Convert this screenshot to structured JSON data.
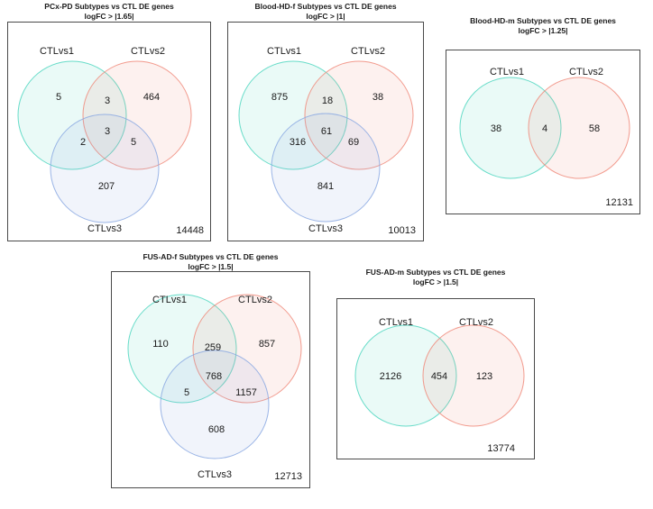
{
  "colors": {
    "set1": "#4fd6bf",
    "set2": "#f08a7a",
    "set3": "#8aa8e2",
    "frame": "#4a4a4a"
  },
  "panels": [
    {
      "title": "PCx-PD Subtypes vs CTL DE genes",
      "subtitle": "logFC > |1.65|",
      "set_labels": [
        "CTLvs1",
        "CTLvs2",
        "CTLvs3"
      ],
      "regions": {
        "only1": "5",
        "only2": "464",
        "only3": "207",
        "s12": "3",
        "s13": "2",
        "s23": "5",
        "s123": "3"
      },
      "outside": "14448"
    },
    {
      "title": "Blood-HD-f Subtypes vs CTL DE genes",
      "subtitle": "logFC > |1|",
      "set_labels": [
        "CTLvs1",
        "CTLvs2",
        "CTLvs3"
      ],
      "regions": {
        "only1": "875",
        "only2": "38",
        "only3": "841",
        "s12": "18",
        "s13": "316",
        "s23": "69",
        "s123": "61"
      },
      "outside": "10013"
    },
    {
      "title": "Blood-HD-m Subtypes vs CTL DE genes",
      "subtitle": "logFC > |1.25|",
      "set_labels": [
        "CTLvs1",
        "CTLvs2"
      ],
      "regions": {
        "only1": "38",
        "only2": "58",
        "s12": "4"
      },
      "outside": "12131"
    },
    {
      "title": "FUS-AD-f Subtypes vs CTL DE genes",
      "subtitle": "logFC > |1.5|",
      "set_labels": [
        "CTLvs1",
        "CTLvs2",
        "CTLvs3"
      ],
      "regions": {
        "only1": "110",
        "only2": "857",
        "only3": "608",
        "s12": "259",
        "s13": "5",
        "s23": "1157",
        "s123": "768"
      },
      "outside": "12713"
    },
    {
      "title": "FUS-AD-m Subtypes vs CTL DE genes",
      "subtitle": "logFC > |1.5|",
      "set_labels": [
        "CTLvs1",
        "CTLvs2"
      ],
      "regions": {
        "only1": "2126",
        "only2": "123",
        "s12": "454"
      },
      "outside": "13774"
    }
  ]
}
